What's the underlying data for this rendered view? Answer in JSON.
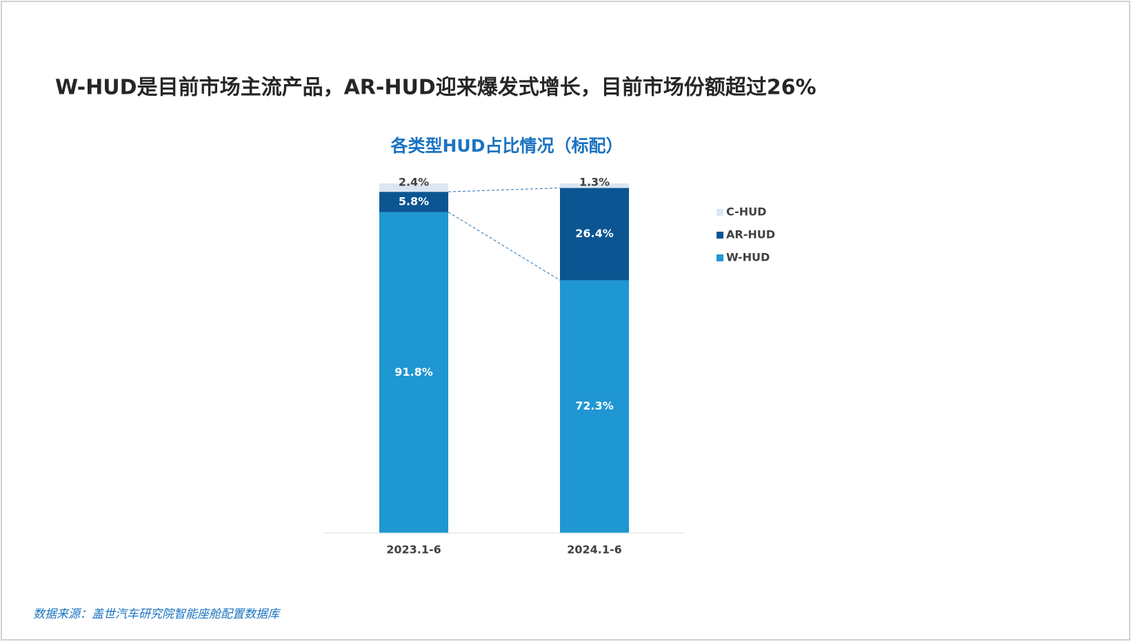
{
  "headline": "W-HUD是目前市场主流产品，AR-HUD迎来爆发式增长，目前市场份额超过26%",
  "source": "数据来源：盖世汽车研究院智能座舱配置数据库",
  "chart_data": {
    "type": "stacked-bar",
    "title": "各类型HUD占比情况（标配）",
    "categories": [
      "2023.1-6",
      "2024.1-6"
    ],
    "series": [
      {
        "name": "W-HUD",
        "color": "#1f97d2",
        "values": [
          91.8,
          72.3
        ],
        "value_labels": [
          "91.8%",
          "72.3%"
        ]
      },
      {
        "name": "AR-HUD",
        "color": "#0b5592",
        "values": [
          5.8,
          26.4
        ],
        "value_labels": [
          "5.8%",
          "26.4%"
        ]
      },
      {
        "name": "C-HUD",
        "color": "#dce6f2",
        "values": [
          2.4,
          1.3
        ],
        "value_labels": [
          "2.4%",
          "1.3%"
        ]
      }
    ],
    "ylim": [
      0,
      100
    ],
    "legend": "right"
  }
}
